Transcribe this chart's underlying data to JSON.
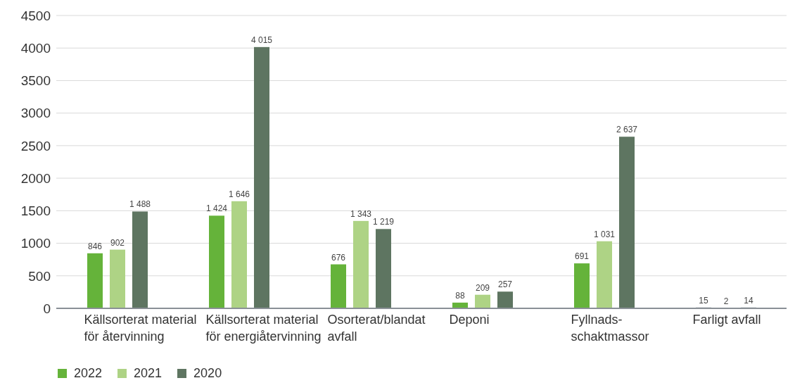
{
  "chart_data": {
    "type": "bar",
    "categories": [
      "Källsorterat material för återvinning",
      "Källsorterat material för energiåtervinning",
      "Osorterat/blandat avfall",
      "Deponi",
      "Fyllnads-schaktmassor",
      "Farligt avfall"
    ],
    "series": [
      {
        "name": "2022",
        "color": "#65b33a",
        "colors": [
          "#65b33a",
          "#65b33a",
          "#65b33a",
          "#65b33a",
          "#65b33a",
          "#a5adb4"
        ],
        "values": [
          846,
          1424,
          676,
          88,
          691,
          15
        ],
        "value_labels": [
          "846",
          "1 424",
          "676",
          "88",
          "691",
          "15"
        ]
      },
      {
        "name": "2021",
        "color": "#aed385",
        "colors": [
          "#aed385",
          "#aed385",
          "#aed385",
          "#aed385",
          "#aed385",
          "#c3c9ce"
        ],
        "values": [
          902,
          1646,
          1343,
          209,
          1031,
          2
        ],
        "value_labels": [
          "902",
          "1 646",
          "1 343",
          "209",
          "1 031",
          "2"
        ]
      },
      {
        "name": "2020",
        "color": "#5e7561",
        "colors": [
          "#5e7561",
          "#5e7561",
          "#5e7561",
          "#5e7561",
          "#5e7561",
          "#8f989f"
        ],
        "values": [
          1488,
          4015,
          1219,
          257,
          2637,
          14
        ],
        "value_labels": [
          "1 488",
          "4 015",
          "1 219",
          "257",
          "2 637",
          "14"
        ]
      }
    ],
    "ylim": [
      0,
      4500
    ],
    "yticks": [
      0,
      500,
      1000,
      1500,
      2000,
      2500,
      3000,
      3500,
      4000,
      4500
    ],
    "grid": "y",
    "legend": "bottom left"
  }
}
